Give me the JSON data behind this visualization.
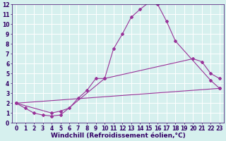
{
  "line1_x": [
    0,
    1,
    2,
    3,
    4,
    5,
    10,
    11,
    12,
    13,
    14,
    15,
    16,
    17,
    18,
    22,
    23
  ],
  "line1_y": [
    2.0,
    1.5,
    1.0,
    0.8,
    0.7,
    0.8,
    4.5,
    7.5,
    9.0,
    10.7,
    11.5,
    12.2,
    12.0,
    10.3,
    8.3,
    4.3,
    3.5
  ],
  "line2_x": [
    0,
    4,
    5,
    6,
    7,
    8,
    9,
    10,
    20,
    21,
    22,
    23
  ],
  "line2_y": [
    2.0,
    1.0,
    1.2,
    1.5,
    2.5,
    3.3,
    4.5,
    4.5,
    6.5,
    6.2,
    5.0,
    4.5
  ],
  "line3_x": [
    0,
    23
  ],
  "line3_y": [
    2.0,
    3.5
  ],
  "color": "#993399",
  "bg_color": "#d6f0ee",
  "grid_color": "#ffffff",
  "xlabel": "Windchill (Refroidissement éolien,°C)",
  "xlim": [
    -0.5,
    23.5
  ],
  "ylim": [
    0,
    12
  ],
  "xticks": [
    0,
    1,
    2,
    3,
    4,
    5,
    6,
    7,
    8,
    9,
    10,
    11,
    12,
    13,
    14,
    15,
    16,
    17,
    18,
    19,
    20,
    21,
    22,
    23
  ],
  "yticks": [
    0,
    1,
    2,
    3,
    4,
    5,
    6,
    7,
    8,
    9,
    10,
    11,
    12
  ],
  "marker": "D",
  "markersize": 2.0,
  "linewidth": 0.8,
  "xlabel_fontsize": 6.5,
  "tick_fontsize": 5.5,
  "xlabel_color": "#330066",
  "tick_color": "#330066"
}
